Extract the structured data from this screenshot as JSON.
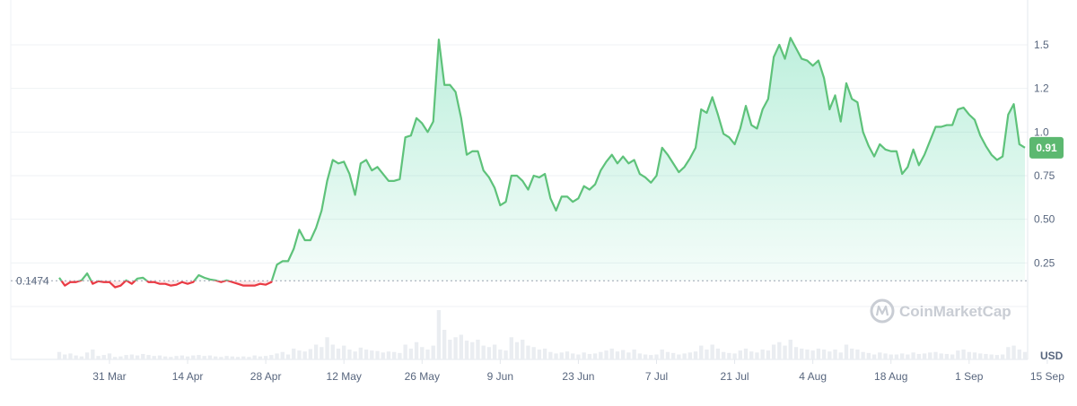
{
  "chart_data": {
    "type": "area",
    "ylim": [
      0,
      1.75
    ],
    "y_ticks": [
      0.25,
      0.5,
      0.75,
      1.0,
      1.25,
      1.5
    ],
    "y_tick_labels": [
      "0.25",
      "0.50",
      "0.75",
      "1.0",
      "1.2",
      "1.5"
    ],
    "x_ticks": [
      {
        "label": "31 Mar",
        "day": 9
      },
      {
        "label": "14 Apr",
        "day": 23
      },
      {
        "label": "28 Apr",
        "day": 37
      },
      {
        "label": "12 May",
        "day": 51
      },
      {
        "label": "26 May",
        "day": 65
      },
      {
        "label": "9 Jun",
        "day": 79
      },
      {
        "label": "23 Jun",
        "day": 93
      },
      {
        "label": "7 Jul",
        "day": 107
      },
      {
        "label": "21 Jul",
        "day": 121
      },
      {
        "label": "4 Aug",
        "day": 135
      },
      {
        "label": "18 Aug",
        "day": 149
      },
      {
        "label": "1 Sep",
        "day": 163
      },
      {
        "label": "15 Sep",
        "day": 177
      }
    ],
    "reference_value": 0.1474,
    "reference_label": "0.1474",
    "current_value": 0.91,
    "current_label": "0.91",
    "currency_label": "USD",
    "series": [
      {
        "values": [
          [
            0,
            0.165
          ],
          [
            1,
            0.12
          ],
          [
            2,
            0.14
          ],
          [
            3,
            0.14
          ],
          [
            4,
            0.15
          ],
          [
            5,
            0.19
          ],
          [
            6,
            0.13
          ],
          [
            7,
            0.145
          ],
          [
            8,
            0.14
          ],
          [
            9,
            0.14
          ],
          [
            10,
            0.11
          ],
          [
            11,
            0.12
          ],
          [
            12,
            0.15
          ],
          [
            13,
            0.13
          ],
          [
            14,
            0.16
          ],
          [
            15,
            0.165
          ],
          [
            16,
            0.14
          ],
          [
            17,
            0.14
          ],
          [
            18,
            0.13
          ],
          [
            19,
            0.13
          ],
          [
            20,
            0.12
          ],
          [
            21,
            0.125
          ],
          [
            22,
            0.14
          ],
          [
            23,
            0.13
          ],
          [
            24,
            0.14
          ],
          [
            25,
            0.18
          ],
          [
            26,
            0.165
          ],
          [
            27,
            0.155
          ],
          [
            28,
            0.15
          ],
          [
            29,
            0.14
          ],
          [
            30,
            0.15
          ],
          [
            31,
            0.14
          ],
          [
            32,
            0.13
          ],
          [
            33,
            0.12
          ],
          [
            34,
            0.12
          ],
          [
            35,
            0.12
          ],
          [
            36,
            0.13
          ],
          [
            37,
            0.125
          ],
          [
            38,
            0.14
          ],
          [
            39,
            0.24
          ],
          [
            40,
            0.26
          ],
          [
            41,
            0.26
          ],
          [
            42,
            0.33
          ],
          [
            43,
            0.44
          ],
          [
            44,
            0.38
          ],
          [
            45,
            0.38
          ],
          [
            46,
            0.45
          ],
          [
            47,
            0.55
          ],
          [
            48,
            0.72
          ],
          [
            49,
            0.84
          ],
          [
            50,
            0.82
          ],
          [
            51,
            0.83
          ],
          [
            52,
            0.76
          ],
          [
            53,
            0.64
          ],
          [
            54,
            0.82
          ],
          [
            55,
            0.84
          ],
          [
            56,
            0.78
          ],
          [
            57,
            0.8
          ],
          [
            58,
            0.76
          ],
          [
            59,
            0.72
          ],
          [
            60,
            0.72
          ],
          [
            61,
            0.73
          ],
          [
            62,
            0.97
          ],
          [
            63,
            0.98
          ],
          [
            64,
            1.08
          ],
          [
            65,
            1.05
          ],
          [
            66,
            1.0
          ],
          [
            67,
            1.06
          ],
          [
            68,
            1.53
          ],
          [
            69,
            1.27
          ],
          [
            70,
            1.27
          ],
          [
            71,
            1.23
          ],
          [
            72,
            1.08
          ],
          [
            73,
            0.87
          ],
          [
            74,
            0.89
          ],
          [
            75,
            0.89
          ],
          [
            76,
            0.78
          ],
          [
            77,
            0.74
          ],
          [
            78,
            0.68
          ],
          [
            79,
            0.58
          ],
          [
            80,
            0.6
          ],
          [
            81,
            0.75
          ],
          [
            82,
            0.75
          ],
          [
            83,
            0.72
          ],
          [
            84,
            0.67
          ],
          [
            85,
            0.75
          ],
          [
            86,
            0.74
          ],
          [
            87,
            0.76
          ],
          [
            88,
            0.62
          ],
          [
            89,
            0.55
          ],
          [
            90,
            0.63
          ],
          [
            91,
            0.63
          ],
          [
            92,
            0.6
          ],
          [
            93,
            0.62
          ],
          [
            94,
            0.69
          ],
          [
            95,
            0.67
          ],
          [
            96,
            0.7
          ],
          [
            97,
            0.78
          ],
          [
            98,
            0.83
          ],
          [
            99,
            0.87
          ],
          [
            100,
            0.82
          ],
          [
            101,
            0.86
          ],
          [
            102,
            0.82
          ],
          [
            103,
            0.84
          ],
          [
            104,
            0.76
          ],
          [
            105,
            0.74
          ],
          [
            106,
            0.71
          ],
          [
            107,
            0.75
          ],
          [
            108,
            0.91
          ],
          [
            109,
            0.87
          ],
          [
            110,
            0.82
          ],
          [
            111,
            0.77
          ],
          [
            112,
            0.8
          ],
          [
            113,
            0.85
          ],
          [
            114,
            0.91
          ],
          [
            115,
            1.13
          ],
          [
            116,
            1.11
          ],
          [
            117,
            1.2
          ],
          [
            118,
            1.1
          ],
          [
            119,
            0.99
          ],
          [
            120,
            0.97
          ],
          [
            121,
            0.93
          ],
          [
            122,
            1.02
          ],
          [
            123,
            1.15
          ],
          [
            124,
            1.04
          ],
          [
            125,
            1.02
          ],
          [
            126,
            1.13
          ],
          [
            127,
            1.19
          ],
          [
            128,
            1.43
          ],
          [
            129,
            1.5
          ],
          [
            130,
            1.42
          ],
          [
            131,
            1.54
          ],
          [
            132,
            1.48
          ],
          [
            133,
            1.42
          ],
          [
            134,
            1.41
          ],
          [
            135,
            1.38
          ],
          [
            136,
            1.41
          ],
          [
            137,
            1.31
          ],
          [
            138,
            1.13
          ],
          [
            139,
            1.21
          ],
          [
            140,
            1.06
          ],
          [
            141,
            1.28
          ],
          [
            142,
            1.19
          ],
          [
            143,
            1.17
          ],
          [
            144,
            1.0
          ],
          [
            145,
            0.92
          ],
          [
            146,
            0.86
          ],
          [
            147,
            0.93
          ],
          [
            148,
            0.9
          ],
          [
            149,
            0.89
          ],
          [
            150,
            0.89
          ],
          [
            151,
            0.76
          ],
          [
            152,
            0.8
          ],
          [
            153,
            0.9
          ],
          [
            154,
            0.81
          ],
          [
            155,
            0.87
          ],
          [
            156,
            0.95
          ],
          [
            157,
            1.03
          ],
          [
            158,
            1.03
          ],
          [
            159,
            1.04
          ],
          [
            160,
            1.04
          ],
          [
            161,
            1.13
          ],
          [
            162,
            1.14
          ],
          [
            163,
            1.1
          ],
          [
            164,
            1.07
          ],
          [
            165,
            0.98
          ],
          [
            166,
            0.92
          ],
          [
            167,
            0.87
          ],
          [
            168,
            0.84
          ],
          [
            169,
            0.86
          ],
          [
            170,
            1.1
          ],
          [
            171,
            1.16
          ],
          [
            172,
            0.93
          ],
          [
            173,
            0.91
          ]
        ]
      }
    ],
    "volume": [
      0.15,
      0.1,
      0.12,
      0.08,
      0.06,
      0.14,
      0.2,
      0.07,
      0.09,
      0.12,
      0.05,
      0.06,
      0.09,
      0.1,
      0.08,
      0.11,
      0.09,
      0.07,
      0.08,
      0.06,
      0.05,
      0.07,
      0.08,
      0.06,
      0.08,
      0.09,
      0.07,
      0.08,
      0.06,
      0.05,
      0.07,
      0.06,
      0.05,
      0.06,
      0.05,
      0.08,
      0.06,
      0.07,
      0.09,
      0.12,
      0.15,
      0.1,
      0.22,
      0.18,
      0.16,
      0.21,
      0.3,
      0.25,
      0.45,
      0.3,
      0.22,
      0.28,
      0.2,
      0.16,
      0.24,
      0.2,
      0.18,
      0.17,
      0.14,
      0.16,
      0.15,
      0.13,
      0.3,
      0.22,
      0.35,
      0.25,
      0.2,
      0.28,
      1.0,
      0.6,
      0.4,
      0.45,
      0.5,
      0.38,
      0.35,
      0.4,
      0.28,
      0.25,
      0.3,
      0.2,
      0.18,
      0.45,
      0.35,
      0.4,
      0.28,
      0.25,
      0.2,
      0.22,
      0.15,
      0.12,
      0.14,
      0.16,
      0.12,
      0.1,
      0.14,
      0.11,
      0.12,
      0.15,
      0.18,
      0.22,
      0.16,
      0.19,
      0.14,
      0.2,
      0.12,
      0.1,
      0.09,
      0.1,
      0.2,
      0.15,
      0.13,
      0.1,
      0.12,
      0.14,
      0.16,
      0.28,
      0.2,
      0.3,
      0.22,
      0.15,
      0.13,
      0.12,
      0.18,
      0.22,
      0.16,
      0.14,
      0.2,
      0.18,
      0.3,
      0.35,
      0.28,
      0.4,
      0.25,
      0.22,
      0.2,
      0.18,
      0.22,
      0.2,
      0.16,
      0.2,
      0.14,
      0.3,
      0.22,
      0.2,
      0.15,
      0.13,
      0.1,
      0.14,
      0.12,
      0.1,
      0.1,
      0.12,
      0.1,
      0.14,
      0.11,
      0.12,
      0.14,
      0.15,
      0.12,
      0.11,
      0.1,
      0.18,
      0.2,
      0.15,
      0.14,
      0.12,
      0.11,
      0.1,
      0.09,
      0.1,
      0.25,
      0.28,
      0.2,
      0.15
    ]
  },
  "watermark": {
    "text": "CoinMarketCap"
  },
  "colors": {
    "up": "#16c784",
    "line_up": "#5ec27a",
    "down": "#ea3943",
    "grid": "#eff2f5",
    "badge": "#5cb870"
  }
}
